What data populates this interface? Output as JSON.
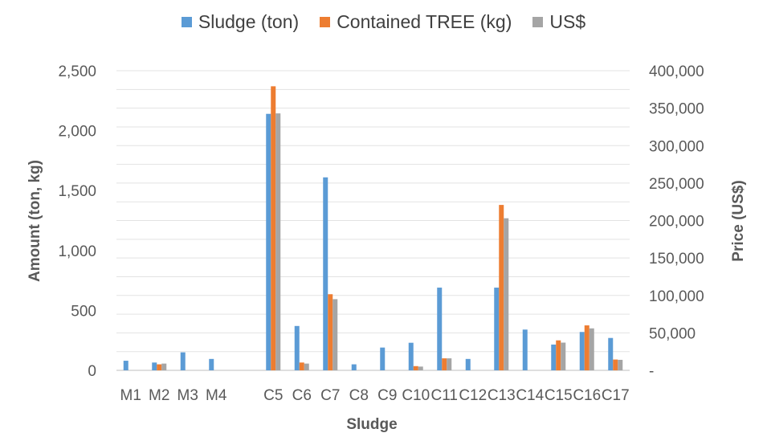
{
  "chart_data": {
    "type": "bar",
    "xlabel": "Sludge",
    "ylabel": "Amount (ton, kg)",
    "y2label": "Price (US$)",
    "categories": [
      "M1",
      "M2",
      "M3",
      "M4",
      "",
      "C5",
      "C6",
      "C7",
      "C8",
      "C9",
      "C10",
      "C11",
      "C12",
      "C13",
      "C14",
      "C15",
      "C16",
      "C17"
    ],
    "ylim": [
      0,
      2500
    ],
    "yticks": [
      "0",
      "500",
      "1,000",
      "1,500",
      "2,000",
      "2,500"
    ],
    "y2lim": [
      0,
      400000
    ],
    "y2ticks": [
      "-",
      "50,000",
      "100,000",
      "150,000",
      "200,000",
      "250,000",
      "300,000",
      "350,000",
      "400,000"
    ],
    "grid": true,
    "legend_position": "top",
    "series": [
      {
        "name": "Sludge (ton)",
        "axis": "left",
        "color": "#5B9BD5",
        "values": [
          80,
          65,
          150,
          95,
          null,
          2140,
          370,
          1610,
          50,
          190,
          230,
          690,
          95,
          690,
          340,
          215,
          320,
          270
        ]
      },
      {
        "name": "Contained TREE (kg)",
        "axis": "left",
        "color": "#ED7D31",
        "values": [
          0,
          50,
          0,
          0,
          null,
          2370,
          65,
          635,
          0,
          0,
          35,
          100,
          0,
          1380,
          0,
          250,
          375,
          90
        ]
      },
      {
        "name": "US$",
        "axis": "right",
        "color": "#A5A5A5",
        "values": [
          0,
          9000,
          0,
          0,
          null,
          343000,
          9000,
          95000,
          0,
          0,
          5000,
          16000,
          0,
          203000,
          0,
          37000,
          56000,
          14000
        ]
      }
    ]
  }
}
